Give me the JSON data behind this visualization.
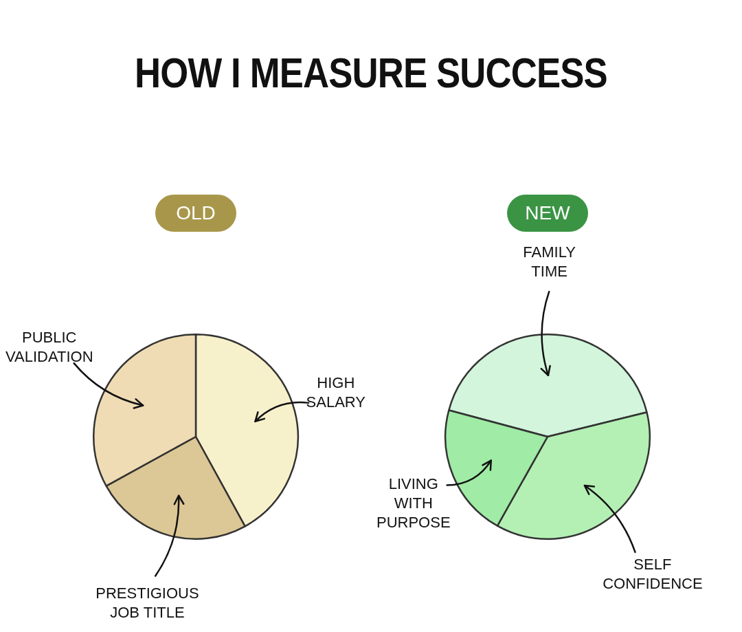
{
  "chart_data": [
    {
      "type": "pie",
      "title": "HOW I MEASURE SUCCESS",
      "subtitle": "OLD",
      "categories": [
        "HIGH SALARY",
        "PRESTIGIOUS JOB TITLE",
        "PUBLIC VALIDATION"
      ],
      "values": [
        42,
        25,
        33
      ],
      "colors": [
        "#f7f1cb",
        "#dcc896",
        "#f0dcb4"
      ]
    },
    {
      "type": "pie",
      "subtitle": "NEW",
      "categories": [
        "FAMILY TIME",
        "SELF CONFIDENCE",
        "LIVING WITH PURPOSE"
      ],
      "values": [
        42,
        37,
        21
      ],
      "colors": [
        "#d2f5dc",
        "#b4f0b4",
        "#a0eba5"
      ]
    }
  ]
}
